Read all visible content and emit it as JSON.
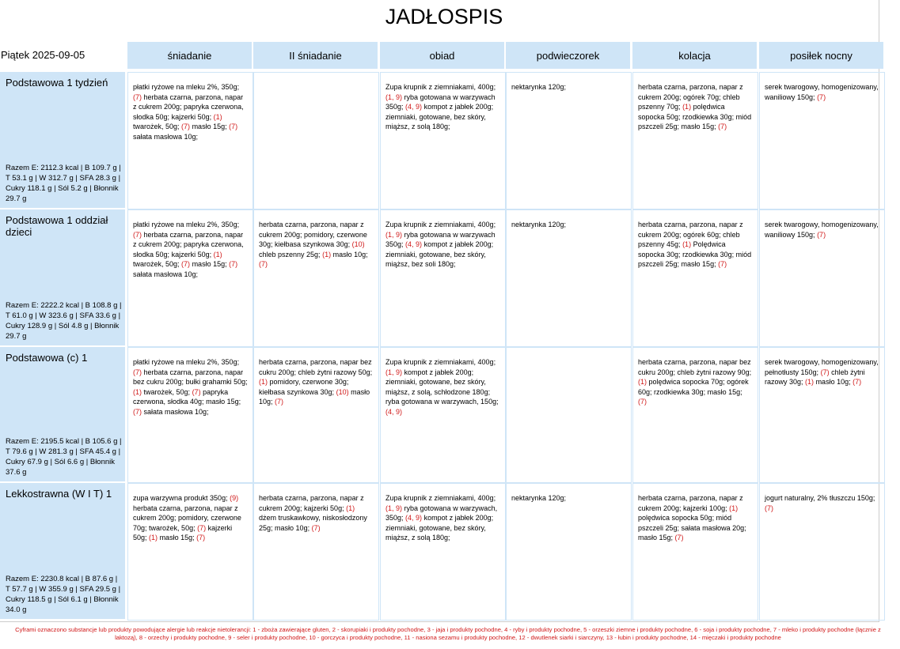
{
  "header": {
    "title": "JADŁOSPIS",
    "date": "Piątek 2025-09-05"
  },
  "columns": [
    "śniadanie",
    "II śniadanie",
    "obiad",
    "podwieczorek",
    "kolacja",
    "posiłek nocny"
  ],
  "rows": [
    {
      "name": "Podstawowa 1 tydzień",
      "summary": "Razem E: 2112.3 kcal | B 109.7 g | T 53.1 g | W 312.7 g | SFA 28.3 g | Cukry 118.1 g | Sól 5.2 g | Błonnik 29.7 g",
      "cells": [
        [
          {
            "text": "płatki ryżowe na mleku 2%, 350g;",
            "allergens": "(7)"
          },
          {
            "text": "herbata czarna, parzona, napar z cukrem 200g;"
          },
          {
            "text": "papryka czerwona, słodka 50g;"
          },
          {
            "text": "kajzerki 50g;",
            "allergens": "(1)"
          },
          {
            "text": "twarożek, 50g;",
            "allergens": "(7)"
          },
          {
            "text": "masło 15g;",
            "allergens": "(7)"
          },
          {
            "text": "sałata masłowa 10g;"
          }
        ],
        [],
        [
          {
            "text": "Zupa krupnik z ziemniakami, 400g;",
            "allergens": "(1, 9)"
          },
          {
            "text": "ryba gotowana w warzywach 350g;",
            "allergens": "(4, 9)"
          },
          {
            "text": "kompot z jabłek 200g;"
          },
          {
            "text": "ziemniaki, gotowane, bez skóry, miąższ, z solą 180g;"
          }
        ],
        [
          {
            "text": "nektarynka 120g;"
          }
        ],
        [
          {
            "text": "herbata czarna, parzona, napar z cukrem 200g;"
          },
          {
            "text": "ogórek 70g;"
          },
          {
            "text": "chleb pszenny 70g;",
            "allergens": "(1)"
          },
          {
            "text": "polędwica sopocka 50g;"
          },
          {
            "text": "rzodkiewka 30g;"
          },
          {
            "text": "miód pszczeli 25g;"
          },
          {
            "text": "masło 15g;",
            "allergens": "(7)"
          }
        ],
        [
          {
            "text": "serek twarogowy, homogenizowany, waniliowy 150g;",
            "allergens": "(7)"
          }
        ]
      ]
    },
    {
      "name": "Podstawowa 1 oddział dzieci",
      "summary": "Razem E: 2222.2 kcal | B 108.8 g | T 61.0 g | W 323.6 g | SFA 33.6 g | Cukry 128.9 g | Sól 4.8 g | Błonnik 29.7 g",
      "cells": [
        [
          {
            "text": "płatki ryżowe na mleku 2%, 350g;",
            "allergens": "(7)"
          },
          {
            "text": "herbata czarna, parzona, napar z cukrem 200g;"
          },
          {
            "text": "papryka czerwona, słodka 50g;"
          },
          {
            "text": "kajzerki 50g;",
            "allergens": "(1)"
          },
          {
            "text": "twarożek, 50g;",
            "allergens": "(7)"
          },
          {
            "text": "masło 15g;",
            "allergens": "(7)"
          },
          {
            "text": "sałata masłowa 10g;"
          }
        ],
        [
          {
            "text": "herbata czarna, parzona, napar z cukrem 200g;"
          },
          {
            "text": "pomidory, czerwone 30g;"
          },
          {
            "text": "kiełbasa szynkowa 30g;",
            "allergens": "(10)"
          },
          {
            "text": "chleb pszenny 25g;",
            "allergens": "(1)"
          },
          {
            "text": "masło 10g;",
            "allergens": "(7)"
          }
        ],
        [
          {
            "text": "Zupa krupnik z ziemniakami, 400g;",
            "allergens": "(1, 9)"
          },
          {
            "text": "ryba gotowana w warzywach 350g;",
            "allergens": "(4, 9)"
          },
          {
            "text": "kompot z jabłek 200g;"
          },
          {
            "text": "ziemniaki, gotowane, bez skóry, miąższ, bez soli  180g;"
          }
        ],
        [
          {
            "text": "nektarynka 120g;"
          }
        ],
        [
          {
            "text": "herbata czarna, parzona, napar z cukrem 200g;"
          },
          {
            "text": "ogórek 60g;"
          },
          {
            "text": "chleb pszenny 45g;",
            "allergens": "(1)"
          },
          {
            "text": "Polędwica sopocka 30g;"
          },
          {
            "text": "rzodkiewka 30g;"
          },
          {
            "text": "miód pszczeli 25g;"
          },
          {
            "text": "masło 15g;",
            "allergens": "(7)"
          }
        ],
        [
          {
            "text": "serek twarogowy, homogenizowany, waniliowy 150g;",
            "allergens": "(7)"
          }
        ]
      ]
    },
    {
      "name": "Podstawowa (c) 1",
      "summary": "Razem E: 2195.5 kcal | B 105.6 g | T 79.6 g | W 281.3 g | SFA 45.4 g | Cukry 67.9 g | Sól 6.6 g | Błonnik 37.6 g",
      "cells": [
        [
          {
            "text": "płatki ryżowe na mleku 2%, 350g;",
            "allergens": "(7)"
          },
          {
            "text": "herbata czarna, parzona, napar bez cukru 200g;"
          },
          {
            "text": "bułki grahamki 50g;",
            "allergens": "(1)"
          },
          {
            "text": "twarożek, 50g;",
            "allergens": "(7)"
          },
          {
            "text": "papryka czerwona, słodka 40g;"
          },
          {
            "text": "masło 15g;",
            "allergens": "(7)"
          },
          {
            "text": "sałata masłowa 10g;"
          }
        ],
        [
          {
            "text": "herbata czarna, parzona, napar bez cukru 200g;"
          },
          {
            "text": "chleb żytni razowy 50g;",
            "allergens": "(1)"
          },
          {
            "text": "pomidory, czerwone 30g;"
          },
          {
            "text": "kiełbasa szynkowa 30g;",
            "allergens": "(10)"
          },
          {
            "text": "masło 10g;",
            "allergens": "(7)"
          }
        ],
        [
          {
            "text": "Zupa krupnik z ziemniakami, 400g;",
            "allergens": "(1, 9)"
          },
          {
            "text": "kompot z jabłek 200g;"
          },
          {
            "text": "ziemniaki, gotowane, bez skóry, miąższ, z solą, schłodzone 180g;"
          },
          {
            "text": "ryba gotowana w warzywach, 150g;",
            "allergens": "(4, 9)"
          }
        ],
        [],
        [
          {
            "text": "herbata czarna, parzona, napar bez cukru 200g;"
          },
          {
            "text": "chleb żytni razowy 90g;",
            "allergens": "(1)"
          },
          {
            "text": "polędwica sopocka 70g;"
          },
          {
            "text": "ogórek 60g;"
          },
          {
            "text": "rzodkiewka 30g;"
          },
          {
            "text": "masło 15g;",
            "allergens": "(7)"
          }
        ],
        [
          {
            "text": "serek twarogowy, homogenizowany, pełnotłusty 150g;",
            "allergens": "(7)"
          },
          {
            "text": "chleb żytni razowy 30g;",
            "allergens": "(1)"
          },
          {
            "text": "masło 10g;",
            "allergens": "(7)"
          }
        ]
      ]
    },
    {
      "name": "Lekkostrawna (W I T) 1",
      "summary": "Razem E: 2230.8 kcal | B 87.6 g | T 57.7 g | W 355.9 g | SFA 29.5 g | Cukry 118.5 g | Sól 6.1 g | Błonnik 34.0 g",
      "cells": [
        [
          {
            "text": "zupa warzywna produkt 350g;",
            "allergens": "(9)"
          },
          {
            "text": "herbata czarna, parzona, napar z cukrem 200g;"
          },
          {
            "text": "pomidory, czerwone 70g;"
          },
          {
            "text": "twarożek, 50g;",
            "allergens": "(7)"
          },
          {
            "text": "kajzerki 50g;",
            "allergens": "(1)"
          },
          {
            "text": "masło 15g;",
            "allergens": "(7)"
          }
        ],
        [
          {
            "text": "herbata czarna, parzona, napar z cukrem 200g;"
          },
          {
            "text": "kajzerki 50g;",
            "allergens": "(1)"
          },
          {
            "text": "dżem truskawkowy, niskosłodzony 25g;"
          },
          {
            "text": "masło 10g;",
            "allergens": "(7)"
          }
        ],
        [
          {
            "text": "Zupa krupnik z ziemniakami, 400g;",
            "allergens": "(1, 9)"
          },
          {
            "text": "ryba gotowana w warzywach, 350g;",
            "allergens": "(4, 9)"
          },
          {
            "text": "kompot z jabłek 200g;"
          },
          {
            "text": "ziemniaki, gotowane, bez skóry, miąższ, z solą 180g;"
          }
        ],
        [
          {
            "text": "nektarynka 120g;"
          }
        ],
        [
          {
            "text": "herbata czarna, parzona, napar z cukrem 200g;"
          },
          {
            "text": "kajzerki 100g;",
            "allergens": "(1)"
          },
          {
            "text": "polędwica sopocka 50g;"
          },
          {
            "text": "miód pszczeli 25g;"
          },
          {
            "text": "sałata masłowa 20g;"
          },
          {
            "text": "masło 15g;",
            "allergens": "(7)"
          }
        ],
        [
          {
            "text": "jogurt naturalny, 2% tłuszczu 150g;",
            "allergens": "(7)"
          }
        ]
      ]
    }
  ],
  "footer": "Cyframi oznaczono substancje lub produkty powodujące alergie lub reakcje nietolerancji: 1 - zboża zawierające gluten, 2 - skorupiaki i produkty pochodne, 3 - jaja i produkty pochodne, 4 - ryby i produkty pochodne, 5 - orzeszki ziemne i produkty pochodne, 6 - soja i produkty pochodne, 7 - mleko i produkty pochodne (łącznie z laktozą), 8 - orzechy i produkty pochodne, 9 - seler i produkty pochodne, 10 - gorczyca i produkty pochodne, 11 - nasiona sezamu i produkty pochodne, 12 - dwutlenek siarki i siarczyny, 13 - łubin i produkty pochodne, 14 - mięczaki i produkty pochodne"
}
